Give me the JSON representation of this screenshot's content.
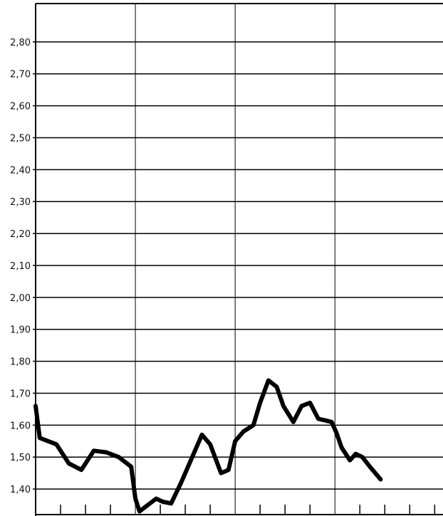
{
  "chart_data": {
    "type": "line",
    "title": "",
    "xlabel": "",
    "ylabel": "",
    "ylim": [
      1.32,
      2.92
    ],
    "xlim": [
      0,
      49
    ],
    "yticks": [
      2.8,
      2.7,
      2.6,
      2.5,
      2.4,
      2.3,
      2.2,
      2.1,
      2.0,
      1.9,
      1.8,
      1.7,
      1.6,
      1.5,
      1.4
    ],
    "ytick_labels": [
      "2,80",
      "2,70",
      "2,60",
      "2,50",
      "2,40",
      "2,30",
      "2,20",
      "2,10",
      "2,00",
      "1,90",
      "1,80",
      "1,70",
      "1,60",
      "1,50",
      "1,40"
    ],
    "x_major_gridlines": [
      12,
      24,
      36
    ],
    "x_minor_ticks": [
      3,
      6,
      9,
      15,
      18,
      21,
      27,
      30,
      33,
      39,
      42,
      45,
      48
    ],
    "grid": true,
    "line_color": "#000000",
    "series": [
      {
        "x": [
          0,
          0.5,
          2.5,
          4,
          5.5,
          7,
          8.5,
          10,
          11.5,
          12,
          12.5,
          13.5,
          14.5,
          15.3,
          16.3,
          17.5,
          18.5,
          20,
          21,
          22.3,
          23.2,
          24,
          25,
          26.2,
          27,
          28,
          29,
          29.8,
          31,
          32,
          33,
          34,
          34.8,
          35.6,
          36.2,
          36.8,
          37.8,
          38.5,
          39.3,
          40.2,
          41.5,
          42.5,
          43.3,
          44.4,
          45.2,
          45.8
        ],
        "y": [
          1.66,
          1.56,
          1.54,
          1.48,
          1.46,
          1.52,
          1.515,
          1.5,
          1.47,
          1.37,
          1.33,
          1.35,
          1.37,
          1.36,
          1.355,
          1.42,
          1.48,
          1.57,
          1.54,
          1.45,
          1.46,
          1.55,
          1.58,
          1.6,
          1.67,
          1.74,
          1.72,
          1.66,
          1.61,
          1.66,
          1.67,
          1.62,
          1.615,
          1.61,
          1.575,
          1.53,
          1.49,
          1.51,
          1.5,
          1.47,
          1.43,
          1.43,
          1.43,
          1.43,
          1.43,
          1.43
        ]
      }
    ]
  }
}
